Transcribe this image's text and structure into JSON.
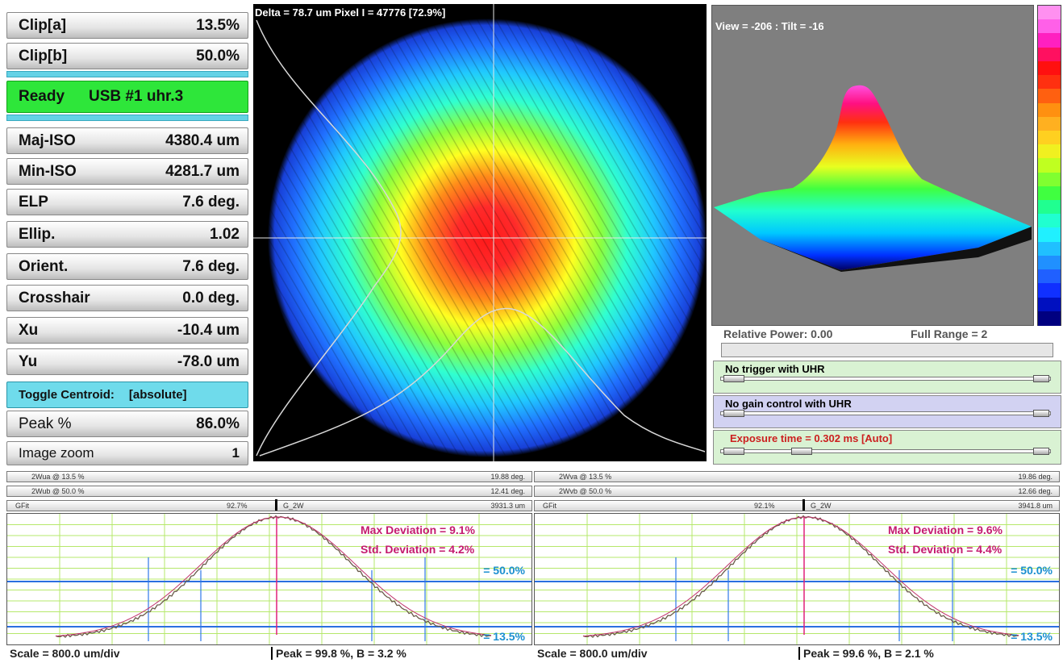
{
  "left_panel": {
    "clip_a": {
      "label": "Clip[a]",
      "value": "13.5%"
    },
    "clip_b": {
      "label": "Clip[b]",
      "value": "50.0%"
    },
    "status": {
      "state": "Ready",
      "device": "USB #1 uhr.3"
    },
    "rows": [
      {
        "label": "Maj-ISO",
        "value": "4380.4 um"
      },
      {
        "label": "Min-ISO",
        "value": "4281.7 um"
      },
      {
        "label": "ELP",
        "value": "7.6 deg."
      },
      {
        "label": "Ellip.",
        "value": "1.02"
      },
      {
        "label": "Orient.",
        "value": "7.6 deg."
      },
      {
        "label": "Crosshair",
        "value": "0.0 deg."
      },
      {
        "label": "Xu",
        "value": "-10.4 um"
      },
      {
        "label": "Yu",
        "value": "-78.0 um"
      }
    ],
    "toggle_centroid": {
      "label": "Toggle Centroid:",
      "value": "[absolute]"
    },
    "peak": {
      "label": "Peak %",
      "value": "86.0%"
    },
    "image_zoom": {
      "label": "Image zoom",
      "value": "1"
    }
  },
  "image_view": {
    "overlay_text": "Delta = 78.7 um Pixel I = 47776 [72.9%]"
  },
  "view_3d": {
    "label": "View = -206 : Tilt = -16"
  },
  "power": {
    "relative": "Relative Power: 0.00",
    "range": "Full Range = 2"
  },
  "controls": {
    "trigger": "No trigger with UHR",
    "gain": "No gain control with UHR",
    "exposure": "Exposure time = 0.302 ms [Auto]"
  },
  "colors": {
    "trigger_bg": "#d9f2d3",
    "gain_bg": "#d2d2f2",
    "exposure_bg": "#d9f2d3",
    "exposure_text": "#cc1f1f",
    "deviation_text": "#c41a6e",
    "clip_text": "#1b8fd0"
  },
  "profiles": [
    {
      "h1_label": "2Wua @ 13.5 %",
      "h1_value": "19.88 deg.",
      "h2_label": "2Wub @ 50.0 %",
      "h2_value": "12.41 deg.",
      "gfit": "GFit",
      "fit_pct": "92.7%",
      "fit_mode": "G_2W",
      "fit_width": "3931.3 um",
      "max_dev": "Max Deviation   = 9.1%",
      "std_dev": "Std. Deviation   = 4.2%",
      "clip50": "= 50.0%",
      "clip13": "= 13.5%",
      "scale": "Scale = 800.0 um/div",
      "peak": "Peak = 99.8 %,  B = 3.2 %"
    },
    {
      "h1_label": "2Wva @ 13.5 %",
      "h1_value": "19.86 deg.",
      "h2_label": "2Wvb @ 50.0 %",
      "h2_value": "12.66 deg.",
      "gfit": "GFit",
      "fit_pct": "92.1%",
      "fit_mode": "G_2W",
      "fit_width": "3941.8 um",
      "max_dev": "Max Deviation   = 9.6%",
      "std_dev": "Std. Deviation   = 4.4%",
      "clip50": "= 50.0%",
      "clip13": "= 13.5%",
      "scale": "Scale = 800.0 um/div",
      "peak": "Peak = 99.6 %,  B = 2.1 %"
    }
  ]
}
